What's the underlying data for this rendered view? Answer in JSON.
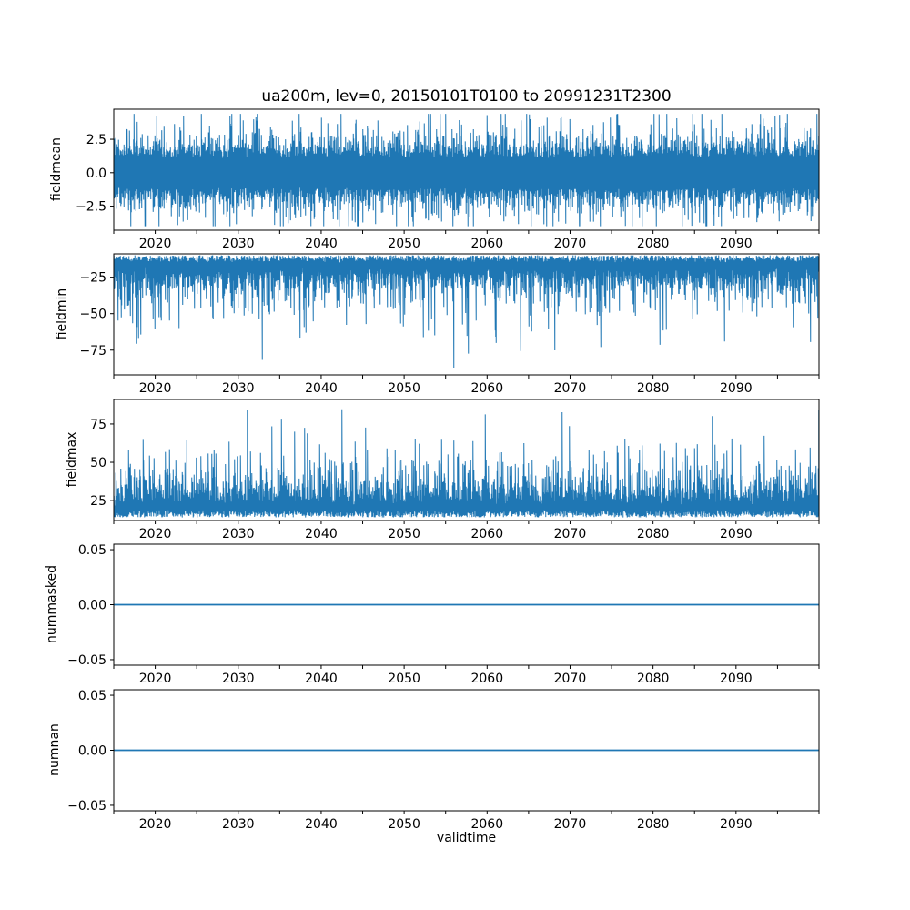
{
  "figure": {
    "title": "ua200m, lev=0, 20150101T0100 to 20991231T2300",
    "xlabel": "validtime",
    "background": "#ffffff",
    "line_color": "#1f77b4",
    "axis_color": "#000000",
    "text_color": "#000000"
  },
  "chart_data": [
    {
      "type": "line",
      "name": "fieldmean",
      "ylabel": "fieldmean",
      "x_range": [
        2015,
        2100
      ],
      "x_major_ticks": [
        2020,
        2030,
        2040,
        2050,
        2060,
        2070,
        2080,
        2090
      ],
      "x_tick_labels": [
        "2020",
        "2030",
        "2040",
        "2050",
        "2060",
        "2070",
        "2080",
        "2090"
      ],
      "x_minor_tick_step_years": 5,
      "ylim": [
        -4.3,
        4.75
      ],
      "yticks": [
        2.5,
        0.0,
        -2.5
      ],
      "ytick_labels": [
        "2.5",
        "0.0",
        "−2.5"
      ],
      "value_range_observed": [
        -4.0,
        4.4
      ],
      "dense_band": [
        -2.0,
        2.2
      ],
      "n_points": 1550,
      "texture": {
        "kind": "sym",
        "base": 1.1,
        "spike_mean": 0.75,
        "cap_high": 4.4,
        "cap_low": -4.0,
        "seed": 42
      }
    },
    {
      "type": "line",
      "name": "fieldmin",
      "ylabel": "fieldmin",
      "x_range": [
        2015,
        2100
      ],
      "x_major_ticks": [
        2020,
        2030,
        2040,
        2050,
        2060,
        2070,
        2080,
        2090
      ],
      "x_tick_labels": [
        "2020",
        "2030",
        "2040",
        "2050",
        "2060",
        "2070",
        "2080",
        "2090"
      ],
      "x_minor_tick_step_years": 5,
      "ylim": [
        -92,
        -9
      ],
      "yticks": [
        -25,
        -50,
        -75
      ],
      "ytick_labels": [
        "−25",
        "−50",
        "−75"
      ],
      "value_range_observed": [
        -87,
        -10
      ],
      "dense_band": [
        -35,
        -10
      ],
      "n_points": 1550,
      "texture": {
        "kind": "spikes_down",
        "edge0": 10,
        "edge1": 5,
        "offset": 7,
        "spike_mean": 9.5,
        "floor": -87,
        "seed": 7
      }
    },
    {
      "type": "line",
      "name": "fieldmax",
      "ylabel": "fieldmax",
      "x_range": [
        2015,
        2100
      ],
      "x_major_ticks": [
        2020,
        2030,
        2040,
        2050,
        2060,
        2070,
        2080,
        2090
      ],
      "x_tick_labels": [
        "2020",
        "2030",
        "2040",
        "2050",
        "2060",
        "2070",
        "2080",
        "2090"
      ],
      "x_minor_tick_step_years": 5,
      "ylim": [
        12,
        91
      ],
      "yticks": [
        75,
        50,
        25
      ],
      "ytick_labels": [
        "75",
        "50",
        "25"
      ],
      "value_range_observed": [
        14,
        88
      ],
      "dense_band": [
        14,
        45
      ],
      "n_points": 1550,
      "texture": {
        "kind": "spikes_up",
        "edge0": 14,
        "edge1": 5,
        "offset": 7,
        "spike_mean": 9.5,
        "ceil": 88,
        "seed": 13
      }
    },
    {
      "type": "line",
      "name": "nummasked",
      "ylabel": "nummasked",
      "x_range": [
        2015,
        2100
      ],
      "x_major_ticks": [
        2020,
        2030,
        2040,
        2050,
        2060,
        2070,
        2080,
        2090
      ],
      "x_tick_labels": [
        "2020",
        "2030",
        "2040",
        "2050",
        "2060",
        "2070",
        "2080",
        "2090"
      ],
      "x_minor_tick_step_years": 5,
      "ylim": [
        -0.055,
        0.055
      ],
      "yticks": [
        0.05,
        0.0,
        -0.05
      ],
      "ytick_labels": [
        "0.05",
        "0.00",
        "−0.05"
      ],
      "value_range_observed": [
        0,
        0
      ],
      "constant_value": 0,
      "n_points": 2,
      "texture": {
        "kind": "const",
        "value": 0
      }
    },
    {
      "type": "line",
      "name": "numnan",
      "ylabel": "numnan",
      "x_range": [
        2015,
        2100
      ],
      "x_major_ticks": [
        2020,
        2030,
        2040,
        2050,
        2060,
        2070,
        2080,
        2090
      ],
      "x_tick_labels": [
        "2020",
        "2030",
        "2040",
        "2050",
        "2060",
        "2070",
        "2080",
        "2090"
      ],
      "x_minor_tick_step_years": 5,
      "ylim": [
        -0.055,
        0.055
      ],
      "yticks": [
        0.05,
        0.0,
        -0.05
      ],
      "ytick_labels": [
        "0.05",
        "0.00",
        "−0.05"
      ],
      "value_range_observed": [
        0,
        0
      ],
      "constant_value": 0,
      "n_points": 2,
      "texture": {
        "kind": "const",
        "value": 0
      }
    }
  ]
}
